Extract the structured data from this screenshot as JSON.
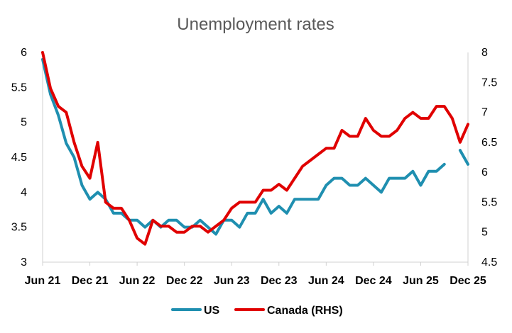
{
  "chart_data": {
    "type": "line",
    "title": "Unemployment rates",
    "xlabel": "",
    "ylabel": "",
    "y2label": "",
    "ylim": [
      3,
      6
    ],
    "y2lim": [
      4.5,
      8
    ],
    "yticks": [
      "3",
      "3.5",
      "4",
      "4.5",
      "5",
      "5.5",
      "6"
    ],
    "y2ticks": [
      "4.5",
      "5",
      "5.5",
      "6",
      "6.5",
      "7",
      "7.5",
      "8"
    ],
    "x_start": "Jun 21",
    "x_months": 55,
    "xticks": [
      {
        "label": "Jun 21",
        "index": 0
      },
      {
        "label": "Dec 21",
        "index": 6
      },
      {
        "label": "Jun 22",
        "index": 12
      },
      {
        "label": "Dec 22",
        "index": 18
      },
      {
        "label": "Jun 23",
        "index": 24
      },
      {
        "label": "Dec 23",
        "index": 30
      },
      {
        "label": "Jun 24",
        "index": 36
      },
      {
        "label": "Dec 24",
        "index": 42
      },
      {
        "label": "Jun 25",
        "index": 48
      },
      {
        "label": "Dec 25",
        "index": 54
      }
    ],
    "legend_position": "bottom",
    "series": [
      {
        "name": "US",
        "axis": "left",
        "color": "#1f8fb0",
        "values": [
          5.9,
          5.4,
          5.1,
          4.7,
          4.5,
          4.1,
          3.9,
          4.0,
          3.9,
          3.7,
          3.7,
          3.6,
          3.6,
          3.5,
          3.6,
          3.5,
          3.6,
          3.6,
          3.5,
          3.5,
          3.6,
          3.5,
          3.4,
          3.6,
          3.6,
          3.5,
          3.7,
          3.7,
          3.9,
          3.7,
          3.8,
          3.7,
          3.9,
          3.9,
          3.9,
          3.9,
          4.1,
          4.2,
          4.2,
          4.1,
          4.1,
          4.2,
          4.1,
          4.0,
          4.2,
          4.2,
          4.2,
          4.3,
          4.1,
          4.3,
          4.3,
          4.4,
          null,
          4.6,
          4.4
        ]
      },
      {
        "name": "Canada (RHS)",
        "axis": "right",
        "color": "#e00000",
        "values": [
          8.0,
          7.4,
          7.1,
          7.0,
          6.5,
          6.1,
          5.9,
          6.5,
          5.5,
          5.4,
          5.4,
          5.2,
          4.9,
          4.8,
          5.2,
          5.1,
          5.1,
          5.0,
          5.0,
          5.1,
          5.1,
          5.0,
          5.1,
          5.2,
          5.4,
          5.5,
          5.5,
          5.5,
          5.7,
          5.7,
          5.8,
          5.7,
          5.9,
          6.1,
          6.2,
          6.3,
          6.4,
          6.4,
          6.7,
          6.6,
          6.6,
          6.9,
          6.7,
          6.6,
          6.6,
          6.7,
          6.9,
          7.0,
          6.9,
          6.9,
          7.1,
          7.1,
          6.9,
          6.5,
          6.8
        ]
      }
    ]
  }
}
